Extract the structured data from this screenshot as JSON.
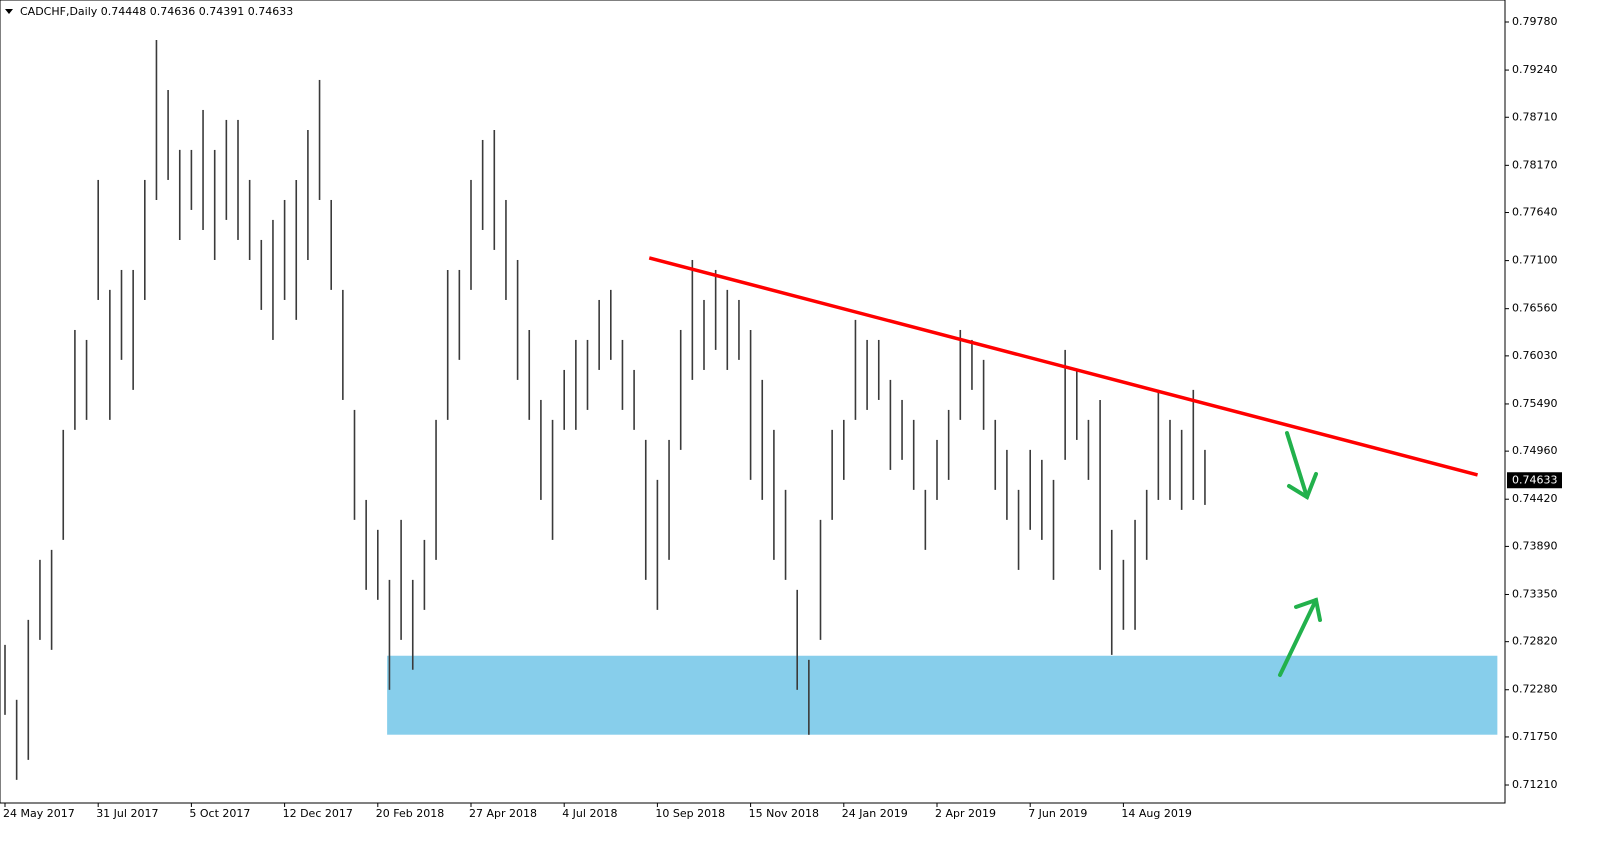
{
  "chart_data": {
    "type": "ohlc",
    "title": "CADCHF,Daily  0.74448 0.74636 0.74391 0.74633",
    "categories": [
      "24 May 2017",
      null,
      null,
      null,
      null,
      null,
      null,
      null,
      "31 Jul 2017",
      null,
      null,
      null,
      null,
      null,
      null,
      null,
      "5 Oct 2017",
      null,
      null,
      null,
      null,
      null,
      null,
      null,
      "12 Dec 2017",
      null,
      null,
      null,
      null,
      null,
      null,
      null,
      "20 Feb 2018",
      null,
      null,
      null,
      null,
      null,
      null,
      null,
      "27 Apr 2018",
      null,
      null,
      null,
      null,
      null,
      null,
      null,
      "4 Jul 2018",
      null,
      null,
      null,
      null,
      null,
      null,
      null,
      "10 Sep 2018",
      null,
      null,
      null,
      null,
      null,
      null,
      null,
      "15 Nov 2018",
      null,
      null,
      null,
      null,
      null,
      null,
      null,
      "24 Jan 2019",
      null,
      null,
      null,
      null,
      null,
      null,
      null,
      "2 Apr 2019",
      null,
      null,
      null,
      null,
      null,
      null,
      null,
      "7 Jun 2019",
      null,
      null,
      null,
      null,
      null,
      null,
      null,
      "14 Aug 2019",
      null,
      null,
      null,
      null,
      null,
      null,
      null
    ],
    "high": [
      0.72784,
      0.72167,
      0.73065,
      0.73739,
      0.73851,
      0.75199,
      0.76321,
      0.76209,
      0.78006,
      0.76771,
      0.76995,
      0.76995,
      0.78006,
      0.79578,
      0.79016,
      0.78343,
      0.78343,
      0.78792,
      0.78343,
      0.7868,
      0.7868,
      0.78006,
      0.77332,
      0.77557,
      0.77781,
      0.78006,
      0.78567,
      0.79129,
      0.77781,
      0.76771,
      0.75423,
      0.74412,
      0.74076,
      0.73514,
      0.74188,
      0.73514,
      0.73963,
      0.75311,
      0.76995,
      0.76995,
      0.78006,
      0.78455,
      0.78567,
      0.77781,
      0.77107,
      0.76321,
      0.75535,
      0.75311,
      0.75872,
      0.76209,
      0.76209,
      0.76658,
      0.76771,
      0.76209,
      0.75872,
      0.75086,
      0.74637,
      0.75086,
      0.76321,
      0.77107,
      0.76658,
      0.76995,
      0.76771,
      0.76658,
      0.76321,
      0.7576,
      0.75199,
      0.74525,
      0.73402,
      0.72616,
      0.74188,
      0.75199,
      0.75311,
      0.76434,
      0.76209,
      0.76209,
      0.7576,
      0.75535,
      0.75311,
      0.74525,
      0.75086,
      0.75423,
      0.76321,
      0.76209,
      0.75985,
      0.75311,
      0.74974,
      0.74525,
      0.74974,
      0.74862,
      0.74637,
      0.76097,
      0.75872,
      0.75311,
      0.75535,
      0.74076,
      0.73739,
      0.74188,
      0.74525,
      0.75648,
      0.75311,
      0.75199,
      0.75648,
      0.74974
    ],
    "low": [
      0.71998,
      0.71268,
      0.71493,
      0.7284,
      0.72728,
      0.73963,
      0.75199,
      0.75311,
      0.76658,
      0.75311,
      0.75985,
      0.75648,
      0.76658,
      0.77781,
      0.78006,
      0.77332,
      0.77669,
      0.77444,
      0.77107,
      0.77557,
      0.77332,
      0.77107,
      0.76546,
      0.76209,
      0.76658,
      0.76434,
      0.77107,
      0.77781,
      0.76771,
      0.75535,
      0.74188,
      0.73402,
      0.7329,
      0.72279,
      0.7284,
      0.72504,
      0.73177,
      0.73739,
      0.75311,
      0.75985,
      0.76771,
      0.77444,
      0.7722,
      0.76658,
      0.7576,
      0.75311,
      0.74412,
      0.73963,
      0.75199,
      0.75199,
      0.75423,
      0.75872,
      0.75985,
      0.75423,
      0.75199,
      0.73514,
      0.73177,
      0.73739,
      0.74974,
      0.7576,
      0.75872,
      0.76097,
      0.75872,
      0.75985,
      0.74637,
      0.74412,
      0.73739,
      0.73514,
      0.72279,
      0.71774,
      0.7284,
      0.74188,
      0.74637,
      0.75311,
      0.75423,
      0.75535,
      0.74749,
      0.74862,
      0.74525,
      0.73851,
      0.74412,
      0.74637,
      0.75311,
      0.75648,
      0.75199,
      0.74525,
      0.74188,
      0.73626,
      0.74076,
      0.73963,
      0.73514,
      0.74862,
      0.75086,
      0.74637,
      0.73626,
      0.72672,
      0.72953,
      0.72953,
      0.73739,
      0.74412,
      0.74412,
      0.743,
      0.74412,
      0.74356
    ],
    "color": "#3a3a3a",
    "ylim": [
      0.71008,
      0.80027
    ],
    "yticks": [
      {
        "value": 0.7978,
        "label": "0.79780"
      },
      {
        "value": 0.7924,
        "label": "0.79240"
      },
      {
        "value": 0.7871,
        "label": "0.78710"
      },
      {
        "value": 0.7817,
        "label": "0.78170"
      },
      {
        "value": 0.7764,
        "label": "0.77640"
      },
      {
        "value": 0.771,
        "label": "0.77100"
      },
      {
        "value": 0.7656,
        "label": "0.76560"
      },
      {
        "value": 0.7603,
        "label": "0.76030"
      },
      {
        "value": 0.7549,
        "label": "0.75490"
      },
      {
        "value": 0.7496,
        "label": "0.74960"
      },
      {
        "value": 0.7442,
        "label": "0.74420"
      },
      {
        "value": 0.7389,
        "label": "0.73890"
      },
      {
        "value": 0.7335,
        "label": "0.73350"
      },
      {
        "value": 0.7282,
        "label": "0.72820"
      },
      {
        "value": 0.7228,
        "label": "0.72280"
      },
      {
        "value": 0.7175,
        "label": "0.71750"
      },
      {
        "value": 0.7121,
        "label": "0.71210"
      }
    ],
    "last_price": {
      "value": 0.74633,
      "label": "0.74633"
    },
    "zone": {
      "x": [
        32.8,
        128.1
      ],
      "y": [
        0.71775,
        0.72662
      ],
      "color": "#87ceeb"
    },
    "trendline": {
      "x": [
        55.3,
        126.4
      ],
      "y": [
        0.7713,
        0.74693
      ],
      "color": "#ff0000"
    }
  }
}
